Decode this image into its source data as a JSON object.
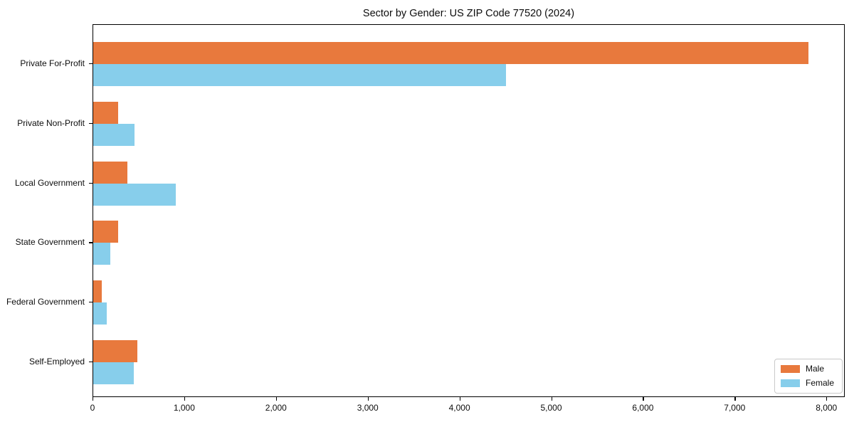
{
  "title": "Sector by Gender: US ZIP Code 77520 (2024)",
  "chart_data": {
    "type": "bar",
    "orientation": "horizontal",
    "title": "Sector by Gender: US ZIP Code 77520 (2024)",
    "xlabel": "",
    "ylabel": "",
    "categories": [
      "Private For-Profit",
      "Private Non-Profit",
      "Local Government",
      "State Government",
      "Federal Government",
      "Self-Employed"
    ],
    "series": [
      {
        "name": "Male",
        "color": "#e8793d",
        "values": [
          7800,
          270,
          375,
          275,
          90,
          480
        ]
      },
      {
        "name": "Female",
        "color": "#87ceeb",
        "values": [
          4500,
          450,
          900,
          190,
          150,
          440
        ]
      }
    ],
    "xlim": [
      0,
      8200
    ],
    "x_ticks": [
      0,
      1000,
      2000,
      3000,
      4000,
      5000,
      6000,
      7000,
      8000
    ],
    "x_tick_labels": [
      "0",
      "1,000",
      "2,000",
      "3,000",
      "4,000",
      "5,000",
      "6,000",
      "7,000",
      "8,000"
    ],
    "grid": false,
    "legend": {
      "position": "lower right",
      "entries": [
        "Male",
        "Female"
      ]
    }
  }
}
